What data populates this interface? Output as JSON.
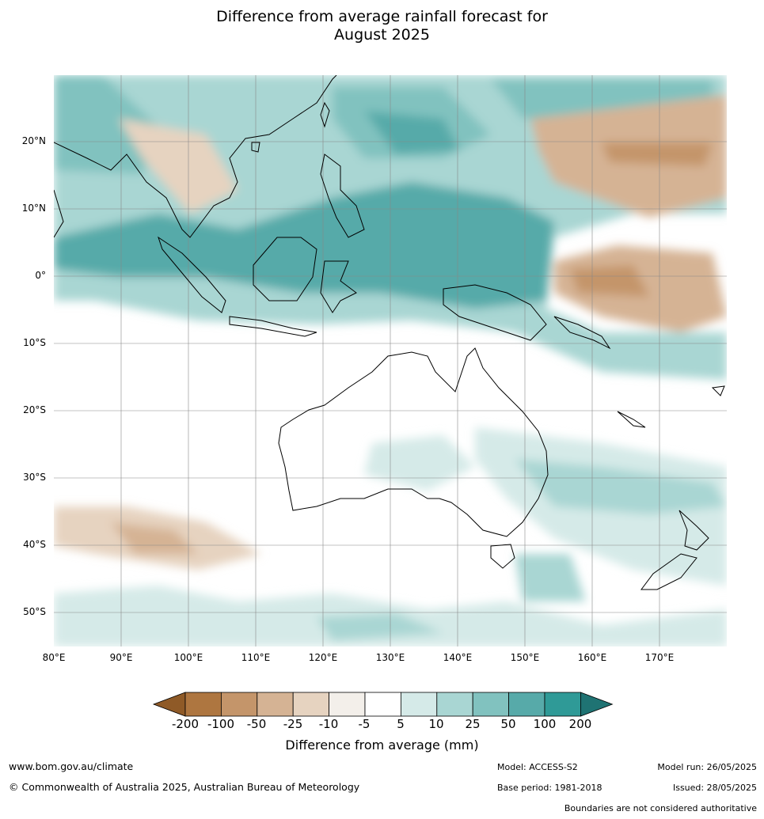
{
  "title_line1": "Difference from average rainfall forecast for",
  "title_line2": "August 2025",
  "lat_labels": [
    "20°N",
    "10°N",
    "0°",
    "10°S",
    "20°S",
    "30°S",
    "40°S",
    "50°S"
  ],
  "lon_labels": [
    "80°E",
    "90°E",
    "100°E",
    "110°E",
    "120°E",
    "130°E",
    "140°E",
    "150°E",
    "160°E",
    "170°E"
  ],
  "legend": {
    "title": "Difference from average (mm)",
    "ticks": [
      "-200",
      "-100",
      "-50",
      "-25",
      "-10",
      "-5",
      "5",
      "10",
      "25",
      "50",
      "100",
      "200"
    ],
    "colors": [
      "#8f5a27",
      "#ae7640",
      "#c4956a",
      "#d5b394",
      "#e6d3c0",
      "#f3efea",
      "#ffffff",
      "#d5eae8",
      "#a9d6d3",
      "#81c2bf",
      "#57aaa9",
      "#2f9a97",
      "#1f7373"
    ]
  },
  "footer": {
    "website": "www.bom.gov.au/climate",
    "copyright": "© Commonwealth of Australia 2025, Australian Bureau of Meteorology",
    "model": "Model: ACCESS-S2",
    "base_period": "Base period: 1981-2018",
    "model_run": "Model run: 26/05/2025",
    "issued": "Issued: 28/05/2025",
    "disclaimer": "Boundaries are not considered authoritative"
  }
}
